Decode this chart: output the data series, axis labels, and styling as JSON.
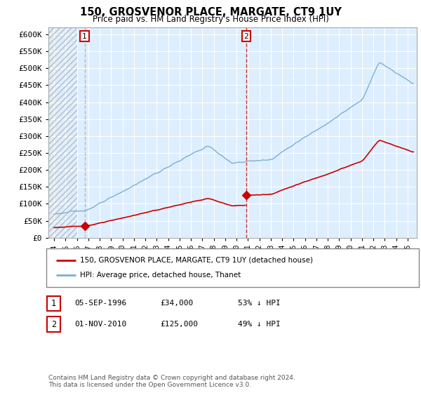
{
  "title": "150, GROSVENOR PLACE, MARGATE, CT9 1UY",
  "subtitle": "Price paid vs. HM Land Registry's House Price Index (HPI)",
  "legend_line1": "150, GROSVENOR PLACE, MARGATE, CT9 1UY (detached house)",
  "legend_line2": "HPI: Average price, detached house, Thanet",
  "annotation1_date": "05-SEP-1996",
  "annotation1_price": "£34,000",
  "annotation1_hpi": "53% ↓ HPI",
  "annotation2_date": "01-NOV-2010",
  "annotation2_price": "£125,000",
  "annotation2_hpi": "49% ↓ HPI",
  "footnote": "Contains HM Land Registry data © Crown copyright and database right 2024.\nThis data is licensed under the Open Government Licence v3.0.",
  "price_color": "#cc0000",
  "hpi_color": "#7ab0d4",
  "hpi_fill_color": "#ddeeff",
  "annotation_box_color": "#cc0000",
  "ann1_vline_color": "#aaaaaa",
  "ann2_vline_color": "#cc0000",
  "ylim": [
    0,
    620000
  ],
  "yticks": [
    0,
    50000,
    100000,
    150000,
    200000,
    250000,
    300000,
    350000,
    400000,
    450000,
    500000,
    550000,
    600000
  ],
  "sale1_x": 1996.67,
  "sale1_y": 34000,
  "sale2_x": 2010.83,
  "sale2_y": 125000,
  "xlim_start": 1993.5,
  "xlim_end": 2025.8,
  "n_months": 373
}
